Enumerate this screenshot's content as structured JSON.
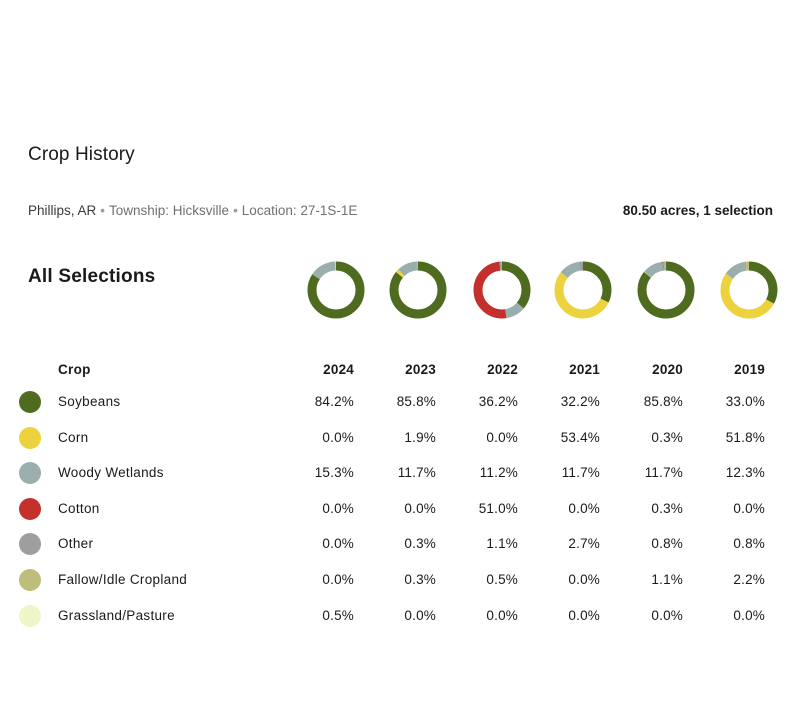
{
  "header": {
    "title": "Crop History",
    "county": "Phillips, AR",
    "township": "Township: Hicksville",
    "location": "Location: 27-1S-1E",
    "separator": "•",
    "acres_summary": "80.50 acres, 1 selection"
  },
  "section": {
    "title": "All Selections"
  },
  "table": {
    "crop_header": "Crop",
    "years": [
      "2024",
      "2023",
      "2022",
      "2021",
      "2020",
      "2019"
    ],
    "rows": [
      {
        "crop": "Soybeans",
        "color": "#4e6b1f",
        "values": [
          "84.2%",
          "85.8%",
          "36.2%",
          "32.2%",
          "85.8%",
          "33.0%"
        ]
      },
      {
        "crop": "Corn",
        "color": "#ecd33d",
        "values": [
          "0.0%",
          "1.9%",
          "0.0%",
          "53.4%",
          "0.3%",
          "51.8%"
        ]
      },
      {
        "crop": "Woody Wetlands",
        "color": "#9aaeae",
        "values": [
          "15.3%",
          "11.7%",
          "11.2%",
          "11.7%",
          "11.7%",
          "12.3%"
        ]
      },
      {
        "crop": "Cotton",
        "color": "#c4302c",
        "values": [
          "0.0%",
          "0.0%",
          "51.0%",
          "0.0%",
          "0.3%",
          "0.0%"
        ]
      },
      {
        "crop": "Other",
        "color": "#9e9e9e",
        "values": [
          "0.0%",
          "0.3%",
          "1.1%",
          "2.7%",
          "0.8%",
          "0.8%"
        ]
      },
      {
        "crop": "Fallow/Idle Cropland",
        "color": "#bdbd7c",
        "values": [
          "0.0%",
          "0.3%",
          "0.5%",
          "0.0%",
          "1.1%",
          "2.2%"
        ]
      },
      {
        "crop": "Grassland/Pasture",
        "color": "#eef6c8",
        "values": [
          "0.5%",
          "0.0%",
          "0.0%",
          "0.0%",
          "0.0%",
          "0.0%"
        ]
      }
    ]
  }
}
